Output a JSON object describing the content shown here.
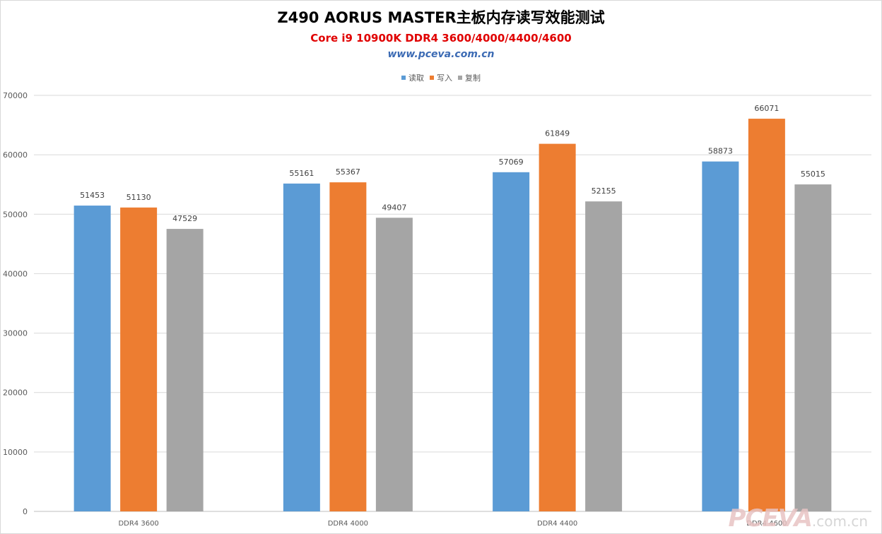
{
  "header": {
    "title": "Z490 AORUS MASTER主板内存读写效能测试",
    "subtitle": "Core i9 10900K DDR4 3600/4000/4400/4600",
    "url": "www.pceva.com.cn"
  },
  "watermark": {
    "brand": "PCEVA",
    "suffix": ".com.cn"
  },
  "chart_data": {
    "type": "bar",
    "title": "Z490 AORUS MASTER主板内存读写效能测试",
    "subtitle": "Core i9 10900K DDR4 3600/4000/4400/4600",
    "xlabel": "",
    "ylabel": "",
    "ylim": [
      0,
      70000
    ],
    "yticks": [
      0,
      10000,
      20000,
      30000,
      40000,
      50000,
      60000,
      70000
    ],
    "grid": true,
    "legend_position": "top",
    "categories": [
      "DDR4 3600",
      "DDR4 4000",
      "DDR4 4400",
      "DDR4 4600"
    ],
    "series": [
      {
        "name": "读取",
        "color": "#5b9bd5",
        "values": [
          51453,
          55161,
          57069,
          58873
        ]
      },
      {
        "name": "写入",
        "color": "#ed7d31",
        "values": [
          51130,
          55367,
          61849,
          66071
        ]
      },
      {
        "name": "复制",
        "color": "#a5a5a5",
        "values": [
          47529,
          49407,
          52155,
          55015
        ]
      }
    ]
  }
}
